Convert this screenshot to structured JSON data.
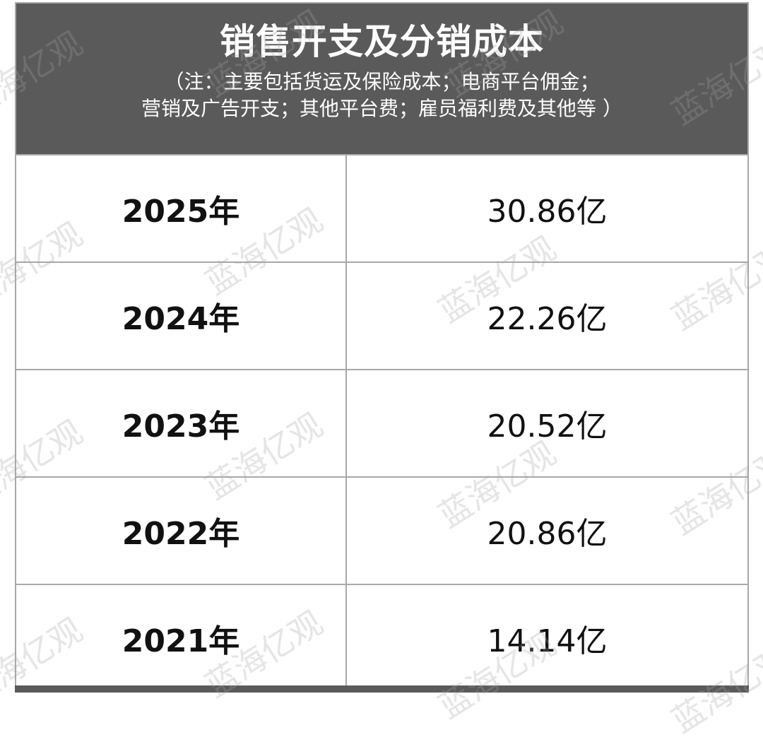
{
  "title": "销售开支及分销成本",
  "subtitle_line1": "（注：主要包括货运及保险成本；电商平台佣金；",
  "subtitle_line2": "营销及广告开支；其他平台费；雇员福利费及其他等 ）",
  "watermark": "蓝海亿观",
  "colors": {
    "header_bg": "#5a5a5a",
    "border": "#a8a8a8"
  },
  "chart_data": {
    "type": "table",
    "title": "销售开支及分销成本",
    "rows": [
      {
        "year": "2025年",
        "value": "30.86亿"
      },
      {
        "year": "2024年",
        "value": "22.26亿"
      },
      {
        "year": "2023年",
        "value": "20.52亿"
      },
      {
        "year": "2022年",
        "value": "20.86亿"
      },
      {
        "year": "2021年",
        "value": "14.14亿"
      }
    ]
  }
}
